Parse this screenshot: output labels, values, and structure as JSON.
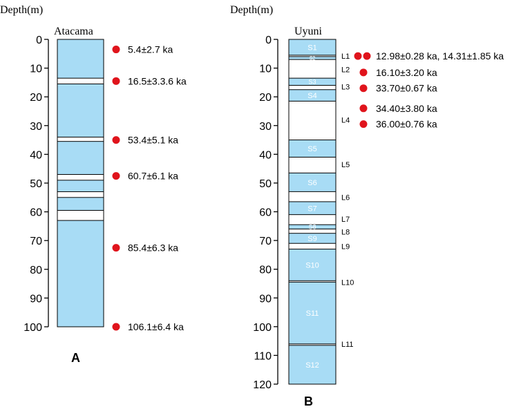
{
  "panel_a": {
    "depth_label": "Depth(m)",
    "site_title": "Atacama",
    "panel_letter": "A",
    "ticks": [
      "0",
      "10",
      "20",
      "30",
      "40",
      "50",
      "60",
      "70",
      "80",
      "90",
      "100"
    ],
    "depth_max": 100,
    "column_color": "#a8dcf5",
    "mud_layers": [
      {
        "from": 13.5,
        "to": 15.5
      },
      {
        "from": 34,
        "to": 35.5
      },
      {
        "from": 47,
        "to": 49
      },
      {
        "from": 53,
        "to": 55
      },
      {
        "from": 59.5,
        "to": 63
      }
    ],
    "ages": [
      {
        "depth": 3.5,
        "text": "5.4±2.7 ka"
      },
      {
        "depth": 14.5,
        "text": "16.5±3.3.6 ka"
      },
      {
        "depth": 35,
        "text": "53.4±5.1 ka"
      },
      {
        "depth": 47.5,
        "text": "60.7±6.1 ka"
      },
      {
        "depth": 72.5,
        "text": "85.4±6.3 ka"
      },
      {
        "depth": 100,
        "text": "106.1±6.4 ka"
      }
    ]
  },
  "panel_b": {
    "depth_label": "Depth(m)",
    "site_title": "Uyuni",
    "panel_letter": "B",
    "ticks": [
      "0",
      "10",
      "20",
      "30",
      "40",
      "50",
      "60",
      "70",
      "80",
      "90",
      "100",
      "110",
      "120"
    ],
    "depth_max": 120,
    "column_color": "#a8dcf5",
    "salt_layers": [
      {
        "label": "S1",
        "from": 0,
        "to": 5.5
      },
      {
        "label": "S2",
        "from": 6,
        "to": 7
      },
      {
        "label": "S3",
        "from": 13.5,
        "to": 16
      },
      {
        "label": "S4",
        "from": 17.5,
        "to": 21.5
      },
      {
        "label": "S5",
        "from": 35,
        "to": 41
      },
      {
        "label": "S6",
        "from": 46.5,
        "to": 53
      },
      {
        "label": "S7",
        "from": 56.5,
        "to": 61
      },
      {
        "label": "S8",
        "from": 64.5,
        "to": 66
      },
      {
        "label": "S9",
        "from": 67.5,
        "to": 71
      },
      {
        "label": "S10",
        "from": 73,
        "to": 84
      },
      {
        "label": "S11",
        "from": 84.5,
        "to": 106
      },
      {
        "label": "S12",
        "from": 106.5,
        "to": 120
      }
    ],
    "mud_labels": [
      {
        "label": "L1",
        "depth": 5.8
      },
      {
        "label": "L2",
        "depth": 10.5
      },
      {
        "label": "L3",
        "depth": 16.5
      },
      {
        "label": "L4",
        "depth": 28
      },
      {
        "label": "L5",
        "depth": 43.5
      },
      {
        "label": "L6",
        "depth": 55
      },
      {
        "label": "L7",
        "depth": 62.5
      },
      {
        "label": "L8",
        "depth": 67
      },
      {
        "label": "L9",
        "depth": 72
      },
      {
        "label": "L10",
        "depth": 84.5
      },
      {
        "label": "L11",
        "depth": 106
      }
    ],
    "ages": [
      {
        "depth": 5.8,
        "dots": 2,
        "text": "12.98±0.28 ka, 14.31±1.85 ka"
      },
      {
        "depth": 11.5,
        "dots": 1,
        "text": "16.10±3.20 ka"
      },
      {
        "depth": 17,
        "dots": 1,
        "text": "33.70±0.67 ka"
      },
      {
        "depth": 24,
        "dots": 1,
        "text": "34.40±3.80 ka"
      },
      {
        "depth": 29.5,
        "dots": 1,
        "text": "36.00±0.76 ka"
      }
    ]
  },
  "colors": {
    "salt": "#a8dcf5",
    "mud": "#ffffff",
    "dot": "#e0141c",
    "line": "#000000"
  }
}
